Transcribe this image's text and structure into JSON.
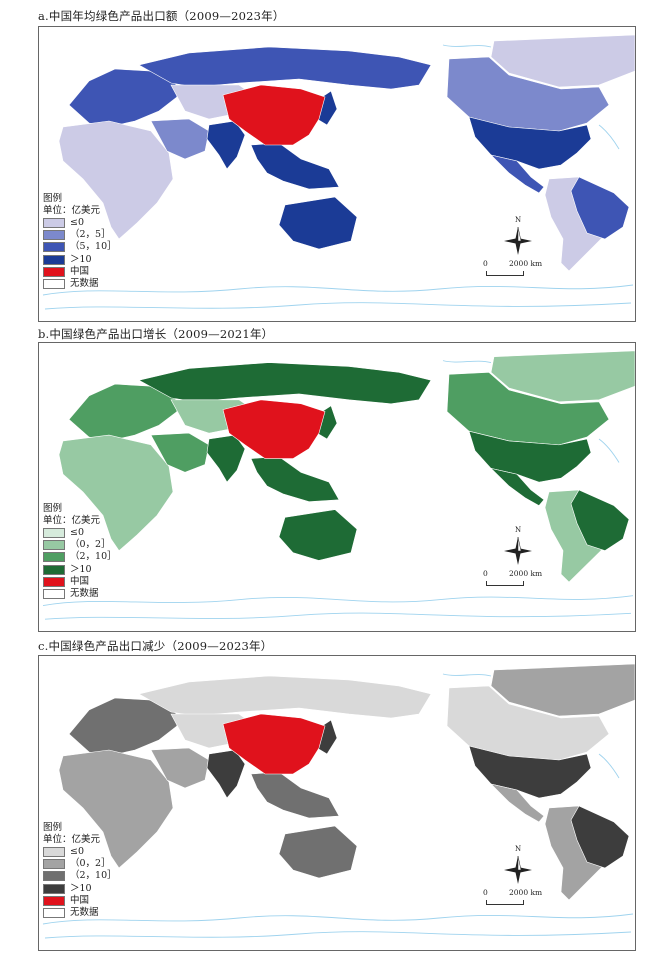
{
  "panels": [
    {
      "title": "a.中国年均绿色产品出口额（2009—2023年）",
      "legend_title": "图例",
      "legend_unit": "单位：亿美元",
      "legend_items": [
        {
          "label": "≤0",
          "color": "#cccbe6"
        },
        {
          "label": "（2，5］",
          "color": "#7c89cc"
        },
        {
          "label": "（5，10］",
          "color": "#3e55b4"
        },
        {
          "label": "＞10",
          "color": "#1b3b96"
        },
        {
          "label": "中国",
          "color": "#e0121c"
        },
        {
          "label": "无数据",
          "color": "#ffffff"
        }
      ],
      "regions": {
        "north_america": "#1b3b96",
        "canada": "#7c89cc",
        "mexico": "#3e55b4",
        "south_america": "#cccbe6",
        "brazil": "#3e55b4",
        "europe": "#3e55b4",
        "russia": "#3e55b4",
        "africa": "#cccbe6",
        "middle_east": "#7c89cc",
        "central_asia": "#cccbe6",
        "india": "#1b3b96",
        "southeast_asia": "#1b3b96",
        "japan": "#1b3b96",
        "australia": "#1b3b96",
        "greenland": "#cccbe6",
        "china": "#e0121c"
      }
    },
    {
      "title": "b.中国绿色产品出口增长（2009—2021年）",
      "legend_title": "图例",
      "legend_unit": "单位：亿美元",
      "legend_items": [
        {
          "label": "≤0",
          "color": "#d6ebdc"
        },
        {
          "label": "（0，2］",
          "color": "#97c9a3"
        },
        {
          "label": "（2，10］",
          "color": "#4f9e62"
        },
        {
          "label": "＞10",
          "color": "#1e6b35"
        },
        {
          "label": "中国",
          "color": "#e0121c"
        },
        {
          "label": "无数据",
          "color": "#ffffff"
        }
      ],
      "regions": {
        "north_america": "#1e6b35",
        "canada": "#4f9e62",
        "mexico": "#1e6b35",
        "south_america": "#97c9a3",
        "brazil": "#1e6b35",
        "europe": "#4f9e62",
        "russia": "#1e6b35",
        "africa": "#97c9a3",
        "middle_east": "#4f9e62",
        "central_asia": "#97c9a3",
        "india": "#1e6b35",
        "southeast_asia": "#1e6b35",
        "japan": "#1e6b35",
        "australia": "#1e6b35",
        "greenland": "#97c9a3",
        "china": "#e0121c"
      }
    },
    {
      "title": "c.中国绿色产品出口减少（2009—2023年）",
      "legend_title": "图例",
      "legend_unit": "单位：亿美元",
      "legend_items": [
        {
          "label": "≤0",
          "color": "#d9d9d9"
        },
        {
          "label": "（0，2］",
          "color": "#a3a3a3"
        },
        {
          "label": "（2，10］",
          "color": "#707070"
        },
        {
          "label": "＞10",
          "color": "#3d3d3d"
        },
        {
          "label": "中国",
          "color": "#e0121c"
        },
        {
          "label": "无数据",
          "color": "#ffffff"
        }
      ],
      "regions": {
        "north_america": "#3d3d3d",
        "canada": "#d9d9d9",
        "mexico": "#a3a3a3",
        "south_america": "#a3a3a3",
        "brazil": "#3d3d3d",
        "europe": "#707070",
        "russia": "#d9d9d9",
        "africa": "#a3a3a3",
        "middle_east": "#a3a3a3",
        "central_asia": "#d9d9d9",
        "india": "#3d3d3d",
        "southeast_asia": "#707070",
        "japan": "#3d3d3d",
        "australia": "#707070",
        "greenland": "#a3a3a3",
        "china": "#e0121c"
      }
    }
  ],
  "north_label": "N",
  "scale_zero": "0",
  "scale_distance": "2000 km",
  "border_color": "#666666",
  "water_line_color": "#9fd3ee"
}
